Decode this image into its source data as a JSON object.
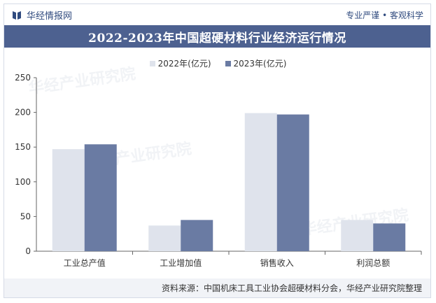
{
  "header": {
    "brand": "华经情报网",
    "slogan": "专业严谨 • 客观科学"
  },
  "chart_data": {
    "type": "bar",
    "title": "2022-2023年中国超硬材料行业经济运行情况",
    "categories": [
      "工业总产值",
      "工业增加值",
      "销售收入",
      "利润总额"
    ],
    "series": [
      {
        "name": "2022年(亿元)",
        "values": [
          147,
          37,
          199,
          45
        ],
        "color": "#dfe3ec"
      },
      {
        "name": "2023年(亿元)",
        "values": [
          154,
          45,
          197,
          40
        ],
        "color": "#6a7ba3"
      }
    ],
    "ylim": [
      0,
      250
    ],
    "yticks": [
      0,
      50,
      100,
      150,
      200,
      250
    ],
    "grid": false,
    "legend_position": "top-center"
  },
  "watermark": "华经产业研究院",
  "footer": {
    "source": "资料来源：中国机床工具工业协会超硬材料分会，华经产业研究院整理"
  }
}
